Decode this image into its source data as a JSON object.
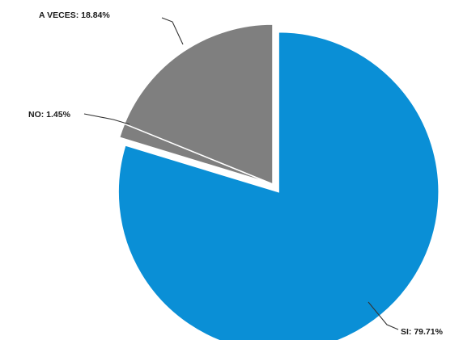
{
  "chart_data": {
    "type": "pie",
    "title": "",
    "slices": [
      {
        "label": "SI",
        "value": 79.71,
        "display": "SI: 79.71%",
        "color": "#0a8fd6"
      },
      {
        "label": "NO",
        "value": 1.45,
        "display": "NO: 1.45%",
        "color": "#7f7f7f"
      },
      {
        "label": "A VECES",
        "value": 18.84,
        "display": "A VECES: 18.84%",
        "color": "#7f7f7f"
      }
    ],
    "legend": "none",
    "exploded": "SI"
  }
}
